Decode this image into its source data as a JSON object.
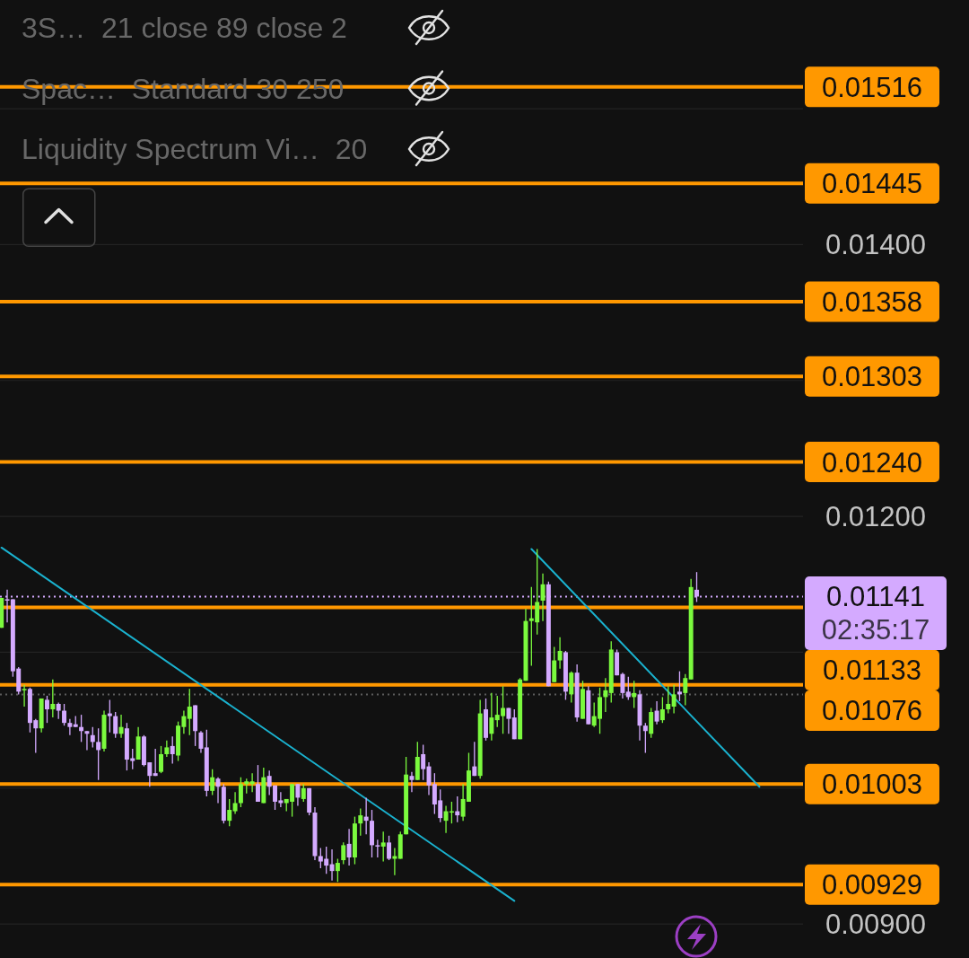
{
  "chart_data": {
    "type": "candlestick",
    "categories": [
      null,
      null,
      null,
      null,
      null,
      null,
      null,
      null,
      null,
      null,
      null,
      null,
      null,
      null,
      null,
      null,
      null,
      null,
      null,
      null,
      null,
      null,
      null,
      null,
      null,
      null,
      null,
      null,
      null,
      null,
      null,
      null,
      null,
      null,
      null,
      null,
      null,
      null,
      null,
      null,
      null,
      null,
      null,
      null,
      null,
      null,
      null,
      null,
      null,
      null,
      null,
      null,
      null,
      null,
      null,
      null,
      null,
      null,
      null,
      null,
      null,
      null,
      null,
      null,
      null,
      null,
      null,
      null,
      null,
      null,
      null,
      null,
      null,
      null,
      null,
      null,
      null,
      null,
      null,
      null,
      null,
      null,
      null,
      null,
      null,
      null,
      null,
      null,
      null,
      null,
      null,
      null,
      null,
      null,
      null,
      null,
      null,
      null,
      null,
      null,
      null,
      null,
      null,
      null,
      null,
      null,
      null,
      null,
      null,
      null,
      null,
      null,
      null,
      null,
      null,
      null,
      null,
      null,
      null,
      null,
      null,
      null,
      null,
      null,
      null,
      null,
      null,
      null,
      null,
      null,
      null,
      null,
      null,
      null,
      null,
      null,
      null,
      null,
      null,
      null,
      null
    ],
    "ohlc": [
      [
        0.01118,
        0.0114,
        0.01118,
        0.0114
      ],
      [
        0.01139,
        0.01146,
        0.01122,
        0.01138
      ],
      [
        0.01139,
        0.01139,
        0.01082,
        0.01086
      ],
      [
        0.01088,
        0.01089,
        0.01069,
        0.01071
      ],
      [
        0.01072,
        0.01076,
        0.0106,
        0.01073
      ],
      [
        0.01073,
        0.01074,
        0.01041,
        0.01048
      ],
      [
        0.0105,
        0.01051,
        0.01026,
        0.01044
      ],
      [
        0.01044,
        0.01066,
        0.01041,
        0.01066
      ],
      [
        0.01065,
        0.01068,
        0.01048,
        0.01058
      ],
      [
        0.01058,
        0.0108,
        0.01052,
        0.01062
      ],
      [
        0.01062,
        0.01063,
        0.01051,
        0.01057
      ],
      [
        0.01057,
        0.01062,
        0.01046,
        0.01048
      ],
      [
        0.01048,
        0.01051,
        0.01039,
        0.01045
      ],
      [
        0.01047,
        0.01053,
        0.01045,
        0.01045
      ],
      [
        0.01045,
        0.01054,
        0.01034,
        0.01042
      ],
      [
        0.01042,
        0.01042,
        0.01028,
        0.0104
      ],
      [
        0.01039,
        0.01045,
        0.0103,
        0.01034
      ],
      [
        0.01034,
        0.01044,
        0.01006,
        0.01028
      ],
      [
        0.01029,
        0.01057,
        0.01027,
        0.01054
      ],
      [
        0.01055,
        0.01065,
        0.01041,
        0.01053
      ],
      [
        0.01053,
        0.01056,
        0.01037,
        0.0104
      ],
      [
        0.0104,
        0.01054,
        0.01037,
        0.01045
      ],
      [
        0.01044,
        0.01048,
        0.01013,
        0.01021
      ],
      [
        0.01022,
        0.01029,
        0.01014,
        0.0102
      ],
      [
        0.01021,
        0.01045,
        0.01021,
        0.01038
      ],
      [
        0.01038,
        0.01039,
        0.01016,
        0.01017
      ],
      [
        0.01019,
        0.01019,
        0.01001,
        0.01009
      ],
      [
        0.01011,
        0.01029,
        0.01009,
        0.01009
      ],
      [
        0.01012,
        0.01031,
        0.01011,
        0.01025
      ],
      [
        0.01025,
        0.01035,
        0.01023,
        0.0103
      ],
      [
        0.01031,
        0.01038,
        0.01018,
        0.01025
      ],
      [
        0.01024,
        0.01049,
        0.0102,
        0.01046
      ],
      [
        0.01045,
        0.01057,
        0.0104,
        0.01053
      ],
      [
        0.01051,
        0.01073,
        0.01039,
        0.0106
      ],
      [
        0.01061,
        0.01061,
        0.01031,
        0.01042
      ],
      [
        0.01041,
        0.01042,
        0.01026,
        0.01029
      ],
      [
        0.0103,
        0.01043,
        0.00994,
        0.00998
      ],
      [
        0.00998,
        0.01014,
        0.00995,
        0.01008
      ],
      [
        0.01007,
        0.01008,
        0.00989,
        0.01001
      ],
      [
        0.01001,
        0.01003,
        0.00974,
        0.00976
      ],
      [
        0.00976,
        0.00992,
        0.00972,
        0.00984
      ],
      [
        0.00983,
        0.00997,
        0.00981,
        0.00989
      ],
      [
        0.00989,
        0.01008,
        0.00986,
        0.01003
      ],
      [
        0.01003,
        0.01007,
        0.00996,
        0.01005
      ],
      [
        0.01003,
        0.01011,
        0.00997,
        0.01005
      ],
      [
        0.01003,
        0.01017,
        0.0099,
        0.0099
      ],
      [
        0.00989,
        0.01015,
        0.00989,
        0.01008
      ],
      [
        0.01009,
        0.01013,
        0.00995,
        0.01001
      ],
      [
        0.01002,
        0.01002,
        0.00984,
        0.0099
      ],
      [
        0.00991,
        0.00997,
        0.00986,
        0.00989
      ],
      [
        0.00989,
        0.00992,
        0.00983,
        0.00992
      ],
      [
        0.0099,
        0.01003,
        0.00979,
        0.01003
      ],
      [
        0.01003,
        0.01003,
        0.00987,
        0.00993
      ],
      [
        0.00992,
        0.01003,
        0.0099,
        0.01
      ],
      [
        0.01,
        0.01,
        0.0098,
        0.00982
      ],
      [
        0.00982,
        0.00986,
        0.00947,
        0.0095
      ],
      [
        0.0095,
        0.00956,
        0.00941,
        0.00946
      ],
      [
        0.00948,
        0.00957,
        0.00937,
        0.00943
      ],
      [
        0.00944,
        0.00955,
        0.00932,
        0.00939
      ],
      [
        0.00939,
        0.00948,
        0.00931,
        0.00945
      ],
      [
        0.00947,
        0.0096,
        0.00944,
        0.00958
      ],
      [
        0.00959,
        0.0097,
        0.00943,
        0.00949
      ],
      [
        0.00949,
        0.00979,
        0.00944,
        0.00974
      ],
      [
        0.00974,
        0.00985,
        0.00965,
        0.0098
      ],
      [
        0.00979,
        0.00993,
        0.00966,
        0.00976
      ],
      [
        0.00976,
        0.00984,
        0.00949,
        0.00958
      ],
      [
        0.00958,
        0.00962,
        0.00949,
        0.00957
      ],
      [
        0.00957,
        0.00968,
        0.00946,
        0.0096
      ],
      [
        0.0096,
        0.00965,
        0.00947,
        0.00948
      ],
      [
        0.00948,
        0.00956,
        0.00936,
        0.0095
      ],
      [
        0.00948,
        0.00968,
        0.00948,
        0.00966
      ],
      [
        0.00966,
        0.01023,
        0.00966,
        0.0101
      ],
      [
        0.01009,
        0.01012,
        0.00997,
        0.01006
      ],
      [
        0.01006,
        0.01034,
        0.01006,
        0.01023
      ],
      [
        0.01025,
        0.01032,
        0.01006,
        0.01014
      ],
      [
        0.01016,
        0.01019,
        0.00995,
        0.01002
      ],
      [
        0.01003,
        0.01011,
        0.00981,
        0.00988
      ],
      [
        0.00991,
        0.00999,
        0.00975,
        0.00978
      ],
      [
        0.00976,
        0.00987,
        0.00967,
        0.00983
      ],
      [
        0.00982,
        0.0099,
        0.00974,
        0.00983
      ],
      [
        0.00983,
        0.00994,
        0.00975,
        0.0098
      ],
      [
        0.00979,
        0.01003,
        0.00976,
        0.00992
      ],
      [
        0.0099,
        0.01026,
        0.0099,
        0.01013
      ],
      [
        0.01016,
        0.01034,
        0.01009,
        0.01009
      ],
      [
        0.01009,
        0.01065,
        0.01007,
        0.01055
      ],
      [
        0.01058,
        0.01066,
        0.01035,
        0.01037
      ],
      [
        0.0104,
        0.0107,
        0.01035,
        0.01052
      ],
      [
        0.0105,
        0.01068,
        0.01045,
        0.01054
      ],
      [
        0.01053,
        0.01075,
        0.0104,
        0.01059
      ],
      [
        0.01059,
        0.01059,
        0.0104,
        0.01051
      ],
      [
        0.01052,
        0.01058,
        0.01036,
        0.01036
      ],
      [
        0.01036,
        0.01081,
        0.01036,
        0.0108
      ],
      [
        0.01079,
        0.01132,
        0.01079,
        0.01123
      ],
      [
        0.01123,
        0.01148,
        0.0109,
        0.01125
      ],
      [
        0.01122,
        0.01176,
        0.01113,
        0.01137
      ],
      [
        0.01138,
        0.01158,
        0.01123,
        0.0115
      ],
      [
        0.0115,
        0.01152,
        0.01075,
        0.01075
      ],
      [
        0.01078,
        0.01104,
        0.01078,
        0.01094
      ],
      [
        0.01094,
        0.01111,
        0.01088,
        0.01101
      ],
      [
        0.011,
        0.01101,
        0.01065,
        0.01071
      ],
      [
        0.01069,
        0.01086,
        0.01063,
        0.01085
      ],
      [
        0.01085,
        0.01091,
        0.01049,
        0.01052
      ],
      [
        0.01051,
        0.01079,
        0.01051,
        0.01073
      ],
      [
        0.01072,
        0.01075,
        0.01047,
        0.01047
      ],
      [
        0.01046,
        0.01063,
        0.01045,
        0.01053
      ],
      [
        0.01051,
        0.01074,
        0.0104,
        0.01067
      ],
      [
        0.01067,
        0.01081,
        0.01056,
        0.01072
      ],
      [
        0.0107,
        0.01108,
        0.01063,
        0.01102
      ],
      [
        0.011,
        0.01102,
        0.01083,
        0.01083
      ],
      [
        0.01084,
        0.01085,
        0.01066,
        0.0107
      ],
      [
        0.01071,
        0.01082,
        0.01065,
        0.01067
      ],
      [
        0.01067,
        0.01079,
        0.01059,
        0.0107
      ],
      [
        0.01069,
        0.01072,
        0.01035,
        0.01046
      ],
      [
        0.01046,
        0.01048,
        0.01026,
        0.01042
      ],
      [
        0.0104,
        0.01059,
        0.01037,
        0.01056
      ],
      [
        0.01057,
        0.01064,
        0.01047,
        0.01049
      ],
      [
        0.0105,
        0.01067,
        0.01048,
        0.01058
      ],
      [
        0.01058,
        0.01075,
        0.01055,
        0.01062
      ],
      [
        0.0106,
        0.01076,
        0.01055,
        0.01069
      ],
      [
        0.01071,
        0.01086,
        0.01064,
        0.01069
      ],
      [
        0.0107,
        0.01084,
        0.01061,
        0.01081
      ],
      [
        0.0108,
        0.01154,
        0.0108,
        0.01148
      ],
      [
        0.01146,
        0.01159,
        0.01137,
        0.01141
      ],
      null,
      null,
      null,
      null,
      null,
      null,
      null,
      null,
      null,
      null,
      null,
      null,
      null,
      null,
      null,
      null,
      null,
      null
    ],
    "colors": [
      "#7bfa3e",
      "#d4aaff",
      "#d4aaff",
      "#d4aaff",
      "#7bfa3e",
      "#d4aaff",
      "#d4aaff",
      "#7bfa3e",
      "#d4aaff",
      "#7bfa3e",
      "#d4aaff",
      "#d4aaff",
      "#d4aaff",
      "#d4aaff",
      "#d4aaff",
      "#d4aaff",
      "#d4aaff",
      "#d4aaff",
      "#7bfa3e",
      "#d4aaff",
      "#d4aaff",
      "#7bfa3e",
      "#d4aaff",
      "#d4aaff",
      "#7bfa3e",
      "#d4aaff",
      "#d4aaff",
      "#d4aaff",
      "#7bfa3e",
      "#7bfa3e",
      "#d4aaff",
      "#7bfa3e",
      "#7bfa3e",
      "#7bfa3e",
      "#d4aaff",
      "#d4aaff",
      "#d4aaff",
      "#7bfa3e",
      "#d4aaff",
      "#d4aaff",
      "#7bfa3e",
      "#7bfa3e",
      "#7bfa3e",
      "#7bfa3e",
      "#7bfa3e",
      "#d4aaff",
      "#7bfa3e",
      "#d4aaff",
      "#d4aaff",
      "#d4aaff",
      "#7bfa3e",
      "#7bfa3e",
      "#d4aaff",
      "#7bfa3e",
      "#d4aaff",
      "#d4aaff",
      "#d4aaff",
      "#d4aaff",
      "#d4aaff",
      "#7bfa3e",
      "#7bfa3e",
      "#d4aaff",
      "#7bfa3e",
      "#7bfa3e",
      "#d4aaff",
      "#d4aaff",
      "#d4aaff",
      "#7bfa3e",
      "#d4aaff",
      "#7bfa3e",
      "#7bfa3e",
      "#7bfa3e",
      "#d4aaff",
      "#7bfa3e",
      "#d4aaff",
      "#d4aaff",
      "#d4aaff",
      "#d4aaff",
      "#7bfa3e",
      "#7bfa3e",
      "#d4aaff",
      "#7bfa3e",
      "#7bfa3e",
      "#d4aaff",
      "#7bfa3e",
      "#d4aaff",
      "#7bfa3e",
      "#7bfa3e",
      "#7bfa3e",
      "#d4aaff",
      "#d4aaff",
      "#7bfa3e",
      "#7bfa3e",
      "#7bfa3e",
      "#7bfa3e",
      "#7bfa3e",
      "#d4aaff",
      "#7bfa3e",
      "#7bfa3e",
      "#d4aaff",
      "#7bfa3e",
      "#d4aaff",
      "#7bfa3e",
      "#d4aaff",
      "#7bfa3e",
      "#7bfa3e",
      "#7bfa3e",
      "#7bfa3e",
      "#d4aaff",
      "#d4aaff",
      "#d4aaff",
      "#7bfa3e",
      "#d4aaff",
      "#d4aaff",
      "#7bfa3e",
      "#d4aaff",
      "#7bfa3e",
      "#7bfa3e",
      "#7bfa3e",
      "#d4aaff",
      "#7bfa3e",
      "#7bfa3e",
      "#d4aaff",
      null,
      null,
      null,
      null,
      null,
      null,
      null,
      null,
      null,
      null,
      null,
      null,
      null,
      null,
      null,
      null,
      null,
      null
    ],
    "series": [
      {
        "type": "line",
        "color": "#1ab2cf",
        "values": [
          0.01177,
          null,
          null,
          null,
          null,
          null,
          null,
          null,
          null,
          null,
          null,
          null,
          null,
          null,
          null,
          null,
          null,
          null,
          null,
          null,
          null,
          null,
          null,
          null,
          null,
          null,
          null,
          null,
          null,
          null,
          null,
          null,
          null,
          null,
          null,
          null,
          null,
          null,
          null,
          null,
          null,
          null,
          null,
          null,
          null,
          null,
          null,
          null,
          null,
          null,
          null,
          null,
          null,
          null,
          null,
          null,
          null,
          null,
          null,
          null,
          null,
          null,
          null,
          null,
          null,
          null,
          null,
          null,
          null,
          null,
          null,
          null,
          null,
          null,
          null,
          null,
          null,
          null,
          null,
          null,
          null,
          null,
          null,
          null,
          null,
          null,
          null,
          null,
          null,
          null,
          0.00917,
          null,
          null,
          null,
          null,
          null,
          null,
          null,
          null,
          null,
          null,
          null,
          null,
          null,
          null,
          null,
          null,
          null,
          null,
          null,
          null,
          null,
          null,
          null,
          null,
          null,
          null,
          null,
          null,
          null,
          null,
          null,
          null,
          null,
          null,
          null,
          null,
          null,
          null,
          null,
          null,
          null,
          null,
          null,
          null,
          null,
          null,
          null,
          null,
          null,
          null
        ]
      },
      {
        "type": "line",
        "color": "#1ab2cf",
        "values": [
          null,
          null,
          null,
          null,
          null,
          null,
          null,
          null,
          null,
          null,
          null,
          null,
          null,
          null,
          null,
          null,
          null,
          null,
          null,
          null,
          null,
          null,
          null,
          null,
          null,
          null,
          null,
          null,
          null,
          null,
          null,
          null,
          null,
          null,
          null,
          null,
          null,
          null,
          null,
          null,
          null,
          null,
          null,
          null,
          null,
          null,
          null,
          null,
          null,
          null,
          null,
          null,
          null,
          null,
          null,
          null,
          null,
          null,
          null,
          null,
          null,
          null,
          null,
          null,
          null,
          null,
          null,
          null,
          null,
          null,
          null,
          null,
          null,
          null,
          null,
          null,
          null,
          null,
          null,
          null,
          null,
          null,
          null,
          null,
          null,
          null,
          null,
          null,
          null,
          null,
          null,
          null,
          null,
          0.01176,
          null,
          null,
          null,
          null,
          null,
          null,
          null,
          null,
          null,
          null,
          null,
          null,
          null,
          null,
          null,
          null,
          null,
          null,
          null,
          null,
          null,
          null,
          null,
          null,
          null,
          null,
          null,
          null,
          null,
          null,
          null,
          null,
          null,
          null,
          null,
          null,
          null,
          null,
          null,
          0.01001,
          null,
          null,
          null,
          null,
          null,
          null,
          null
        ]
      }
    ],
    "ylim": [
      0.00875,
      0.0158
    ],
    "yticks": [
      {
        "value": 0.015,
        "label": null
      },
      {
        "value": 0.014,
        "label": "0.01400"
      },
      {
        "value": 0.013,
        "label": null
      },
      {
        "value": 0.012,
        "label": "0.01200"
      },
      {
        "value": 0.011,
        "label": null
      },
      {
        "value": 0.01,
        "label": null
      },
      {
        "value": 0.009,
        "label": "0.00900"
      }
    ],
    "tick_labels": "y",
    "grid": "y",
    "ref_lines": [
      {
        "axis": "y",
        "value": 0.01516,
        "label": "0.01516",
        "color": "#ff9800"
      },
      {
        "axis": "y",
        "value": 0.01445,
        "label": "0.01445",
        "color": "#ff9800"
      },
      {
        "axis": "y",
        "value": 0.01358,
        "label": "0.01358",
        "color": "#ff9800"
      },
      {
        "axis": "y",
        "value": 0.01303,
        "label": "0.01303",
        "color": "#ff9800"
      },
      {
        "axis": "y",
        "value": 0.0124,
        "label": "0.01240",
        "color": "#ff9800"
      },
      {
        "axis": "y",
        "value": 0.01141,
        "label": "0.01141\n02:35:17",
        "color": "#d4aaff",
        "line_style": "dotted"
      },
      {
        "axis": "y",
        "value": 0.01133,
        "label": "0.01133",
        "color": "#ff9800"
      },
      {
        "axis": "y",
        "value": 0.01076,
        "label": "0.01076",
        "color": "#ff9800"
      },
      {
        "axis": "y",
        "value": 0.01069,
        "color": "#5c5c5c",
        "line_style": "dotted"
      },
      {
        "axis": "y",
        "value": 0.01003,
        "label": "0.01003",
        "color": "#ff9800"
      },
      {
        "axis": "y",
        "value": 0.00929,
        "label": "0.00929",
        "color": "#ff9800"
      }
    ],
    "annotations": [
      "3S…  21 close 89 close 2",
      "Spac…  Standard 30 250",
      "Liquidity Spectrum Vi…  20"
    ]
  }
}
